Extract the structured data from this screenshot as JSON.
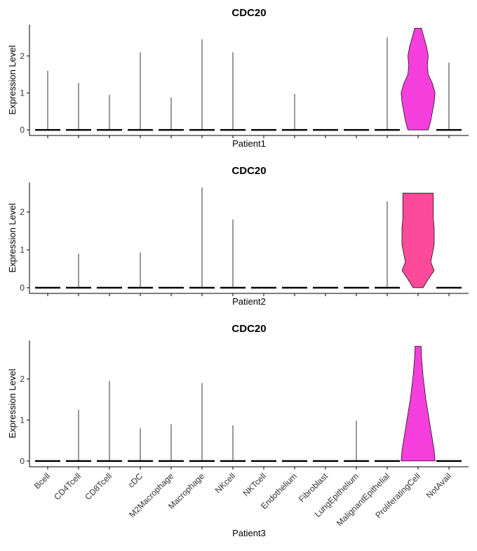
{
  "chart_data": [
    {
      "type": "violin",
      "title": "CDC20",
      "x_label": "Patient1",
      "y_label": "Expression Level",
      "values": [
        1.6,
        1.27,
        0.95,
        2.1,
        0.88,
        2.45,
        2.1,
        0,
        0.97,
        0,
        0,
        2.5,
        2.75,
        1.82
      ],
      "density": [
        null,
        null,
        null,
        null,
        null,
        null,
        null,
        null,
        null,
        null,
        null,
        null,
        [
          0.6,
          0.75,
          0.85,
          0.95,
          1.0,
          0.85,
          0.6,
          0.55,
          0.6,
          0.5,
          0.35,
          0.2
        ],
        null
      ],
      "color": "#f53fdc",
      "ylim": [
        -0.15,
        2.85
      ],
      "yticks": [
        0,
        1,
        2
      ]
    },
    {
      "type": "violin",
      "title": "CDC20",
      "x_label": "Patient2",
      "y_label": "Expression Level",
      "values": [
        0,
        0.9,
        0,
        0.93,
        0,
        2.65,
        1.8,
        0,
        0,
        0,
        0,
        2.28,
        2.5,
        0
      ],
      "density": [
        null,
        null,
        null,
        null,
        null,
        null,
        null,
        null,
        null,
        null,
        null,
        null,
        [
          0.3,
          0.6,
          0.95,
          0.75,
          0.85,
          0.95,
          0.95,
          0.95,
          0.9,
          0.9,
          0.9,
          0.9
        ],
        null
      ],
      "color": "#fc4a9a",
      "ylim": [
        -0.15,
        2.78
      ],
      "yticks": [
        0,
        1,
        2
      ]
    },
    {
      "type": "violin",
      "title": "CDC20",
      "x_label": "Patient3",
      "y_label": "Expression Level",
      "categories": [
        "Bcell",
        "CD4Tcell",
        "CD8Tcell",
        "cDC",
        "M2Macrophage",
        "Macrophage",
        "NKcell",
        "NKTcell",
        "Endothelium",
        "Fibroblast",
        "LungEpithelium",
        "MalignantEpithelial",
        "ProliferatingCell",
        "NotAvail"
      ],
      "values": [
        0,
        1.25,
        1.95,
        0.8,
        0.9,
        1.9,
        0.87,
        0,
        0,
        0,
        0.98,
        0,
        2.8,
        0
      ],
      "density": [
        null,
        null,
        null,
        null,
        null,
        null,
        null,
        null,
        null,
        null,
        null,
        null,
        [
          1.0,
          0.95,
          0.85,
          0.75,
          0.65,
          0.55,
          0.45,
          0.38,
          0.3,
          0.25,
          0.2,
          0.18
        ],
        null
      ],
      "color": "#f53fdc",
      "ylim": [
        -0.14,
        2.94
      ],
      "yticks": [
        0,
        1,
        2
      ]
    }
  ]
}
